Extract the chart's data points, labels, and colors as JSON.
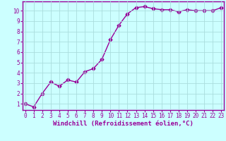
{
  "x": [
    0,
    1,
    2,
    3,
    4,
    5,
    6,
    7,
    8,
    9,
    10,
    11,
    12,
    13,
    14,
    15,
    16,
    17,
    18,
    19,
    20,
    21,
    22,
    23
  ],
  "y": [
    1.0,
    0.7,
    2.0,
    3.1,
    2.7,
    3.3,
    3.1,
    4.1,
    4.4,
    5.3,
    7.2,
    8.6,
    9.7,
    10.3,
    10.4,
    10.2,
    10.1,
    10.1,
    9.9,
    10.1,
    10.0,
    10.0,
    10.0,
    10.3
  ],
  "line_color": "#990099",
  "marker": "D",
  "marker_size": 2.5,
  "background_color": "#ccffff",
  "grid_color": "#aadddd",
  "xlabel": "Windchill (Refroidissement éolien,°C)",
  "ylabel_ticks": [
    1,
    2,
    3,
    4,
    5,
    6,
    7,
    8,
    9,
    10
  ],
  "xlabel_ticks": [
    0,
    1,
    2,
    3,
    4,
    5,
    6,
    7,
    8,
    9,
    10,
    11,
    12,
    13,
    14,
    15,
    16,
    17,
    18,
    19,
    20,
    21,
    22,
    23
  ],
  "xlim": [
    -0.3,
    23.3
  ],
  "ylim": [
    0.4,
    10.9
  ],
  "xlabel_color": "#990099",
  "tick_label_color": "#990099",
  "axis_color": "#990099",
  "linewidth": 1.0,
  "tick_fontsize": 5.5,
  "xlabel_fontsize": 6.5
}
